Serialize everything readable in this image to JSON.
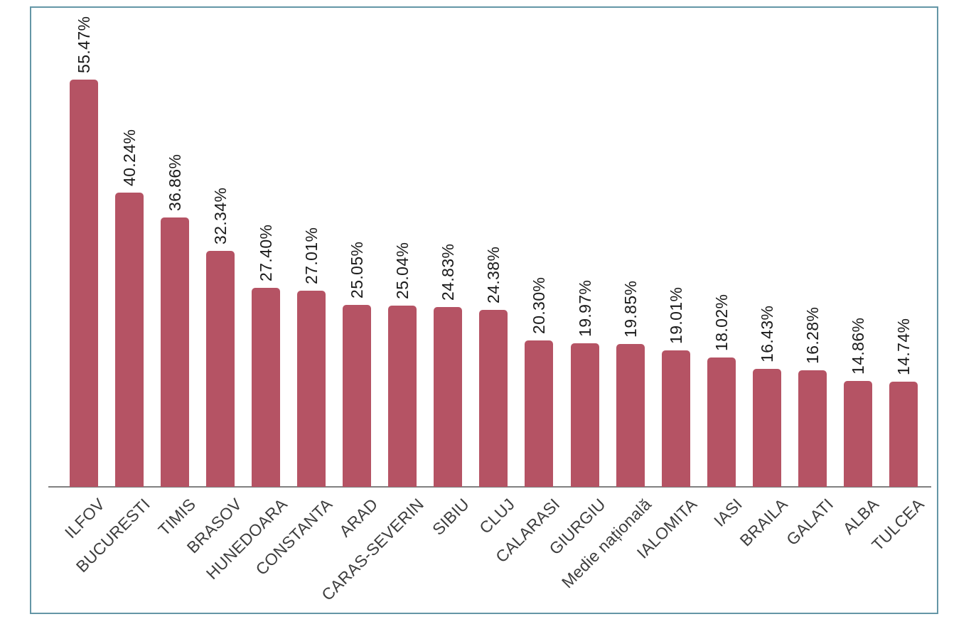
{
  "chart_data": {
    "type": "bar",
    "title": "",
    "xlabel": "",
    "ylabel": "",
    "categories": [
      "ILFOV",
      "BUCURESTI",
      "TIMIS",
      "BRASOV",
      "HUNEDOARA",
      "CONSTANTA",
      "ARAD",
      "CARAS-SEVERIN",
      "SIBIU",
      "CLUJ",
      "CALARASI",
      "GIURGIU",
      "Medie națională",
      "IALOMITA",
      "IASI",
      "BRAILA",
      "GALATI",
      "ALBA",
      "TULCEA"
    ],
    "values": [
      55.47,
      40.24,
      36.86,
      32.34,
      27.4,
      27.01,
      25.05,
      25.04,
      24.83,
      24.38,
      20.3,
      19.97,
      19.85,
      19.01,
      18.02,
      16.43,
      16.28,
      14.86,
      14.74
    ],
    "value_labels": [
      "55.47%",
      "40.24%",
      "36.86%",
      "32.34%",
      "27.40%",
      "27.01%",
      "25.05%",
      "25.04%",
      "24.83%",
      "24.38%",
      "20.30%",
      "19.97%",
      "19.85%",
      "19.01%",
      "18.02%",
      "16.43%",
      "16.28%",
      "14.86%",
      "14.74%"
    ],
    "ylim": [
      0,
      60
    ],
    "grid": false,
    "legend": "none",
    "value_label_rotation_deg": 90,
    "category_label_rotation_deg": 45,
    "colors": {
      "bar": "#b55364",
      "frame_border": "#6496a6",
      "axis_line": "#808080",
      "value_label": "#1a1a1a",
      "category_label": "#3d3d3d"
    }
  }
}
